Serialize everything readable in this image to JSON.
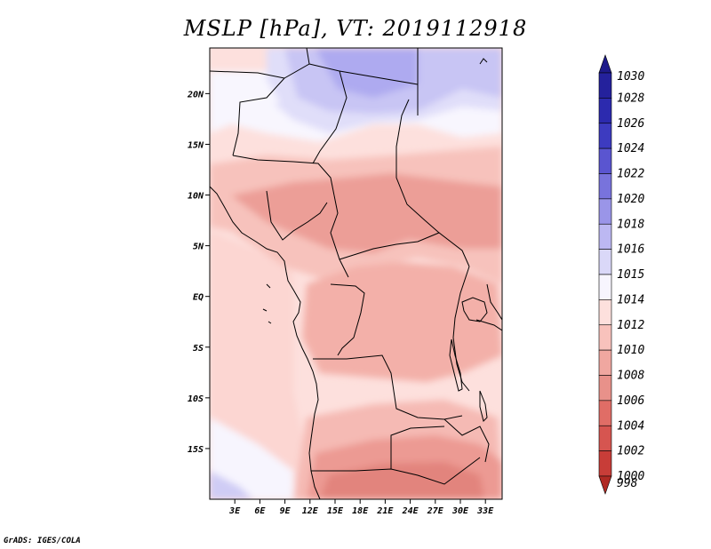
{
  "title": "MSLP [hPa], VT: 2019112918",
  "footer": "GrADS: IGES/COLA",
  "chart_data": {
    "type": "heatmap",
    "title": "MSLP [hPa], VT: 2019112918",
    "variable": "Mean sea level pressure",
    "units": "hPa",
    "valid_time": "2019112918",
    "xlim": [
      0,
      35
    ],
    "ylim": [
      -20,
      24.5
    ],
    "x_ticks": [
      {
        "value": 3,
        "label": "3E"
      },
      {
        "value": 6,
        "label": "6E"
      },
      {
        "value": 9,
        "label": "9E"
      },
      {
        "value": 12,
        "label": "12E"
      },
      {
        "value": 15,
        "label": "15E"
      },
      {
        "value": 18,
        "label": "18E"
      },
      {
        "value": 21,
        "label": "21E"
      },
      {
        "value": 24,
        "label": "24E"
      },
      {
        "value": 27,
        "label": "27E"
      },
      {
        "value": 30,
        "label": "30E"
      },
      {
        "value": 33,
        "label": "33E"
      }
    ],
    "y_ticks": [
      {
        "value": 20,
        "label": "20N"
      },
      {
        "value": 15,
        "label": "15N"
      },
      {
        "value": 10,
        "label": "10N"
      },
      {
        "value": 5,
        "label": "5N"
      },
      {
        "value": 0,
        "label": "EQ"
      },
      {
        "value": -5,
        "label": "5S"
      },
      {
        "value": -10,
        "label": "10S"
      },
      {
        "value": -15,
        "label": "15S"
      }
    ],
    "colorbar": [
      {
        "label": "1030",
        "color": "#1e1a8a"
      },
      {
        "label": "1028",
        "color": "#24219c"
      },
      {
        "label": "1026",
        "color": "#2c2aae"
      },
      {
        "label": "1024",
        "color": "#3d3bc0"
      },
      {
        "label": "1022",
        "color": "#5a55d0"
      },
      {
        "label": "1020",
        "color": "#7873dc"
      },
      {
        "label": "1018",
        "color": "#9a95e8"
      },
      {
        "label": "1016",
        "color": "#bcb8f2"
      },
      {
        "label": "1015",
        "color": "#dad8f8"
      },
      {
        "label": "1014",
        "color": "#f7f5fe"
      },
      {
        "label": "1012",
        "color": "#fde0dd"
      },
      {
        "label": "1010",
        "color": "#f8c2bc"
      },
      {
        "label": "1008",
        "color": "#f0a7a0"
      },
      {
        "label": "1006",
        "color": "#e8918a"
      },
      {
        "label": "1004",
        "color": "#e06d66"
      },
      {
        "label": "1002",
        "color": "#d65550"
      },
      {
        "label": "1000",
        "color": "#c83d38"
      },
      {
        "label": "998",
        "color": "#b02a24"
      }
    ],
    "field_regions": [
      {
        "name": "high-core-north",
        "level": 1018,
        "color": "#aeaaf0"
      },
      {
        "name": "high-north",
        "level": 1016,
        "color": "#c8c5f4"
      },
      {
        "name": "ridge-1015",
        "level": 1015,
        "color": "#e0def9"
      },
      {
        "name": "band-1014",
        "level": 1014,
        "color": "#f8f6fe"
      },
      {
        "name": "sahel-1012",
        "level": 1012,
        "color": "#fde0dd"
      },
      {
        "name": "low-1010-north",
        "level": 1010,
        "color": "#f7c2bc"
      },
      {
        "name": "low-1008-north",
        "level": 1008,
        "color": "#ec9e97"
      },
      {
        "name": "congo-1010",
        "level": 1010,
        "color": "#f3b0a9"
      },
      {
        "name": "ocean-1012",
        "level": 1012,
        "color": "#fcd6d2"
      },
      {
        "name": "angola-1010",
        "level": 1010,
        "color": "#f5bab4"
      },
      {
        "name": "south-1008",
        "level": 1008,
        "color": "#ec9a93"
      },
      {
        "name": "south-1006",
        "level": 1006,
        "color": "#e2847d"
      },
      {
        "name": "sw-high-1014",
        "level": 1014,
        "color": "#f7f5fe"
      },
      {
        "name": "sw-high-1016",
        "level": 1016,
        "color": "#cfccf5"
      }
    ]
  }
}
